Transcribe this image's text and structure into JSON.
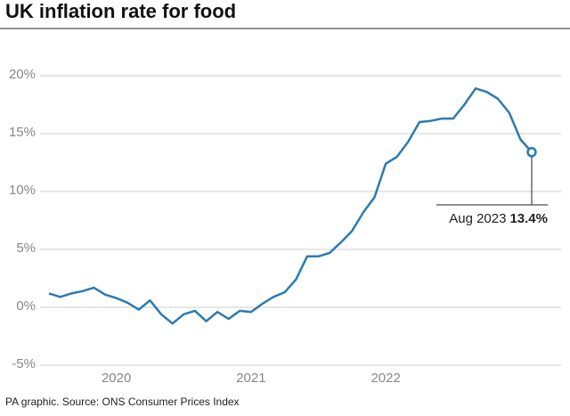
{
  "chart_data": {
    "type": "line",
    "title": "UK inflation rate for food",
    "source": "PA graphic. Source: ONS Consumer Prices Index",
    "categories": [
      null,
      null,
      null,
      null,
      null,
      null,
      "2020",
      null,
      null,
      null,
      null,
      null,
      null,
      null,
      null,
      null,
      null,
      null,
      "2021",
      null,
      null,
      null,
      null,
      null,
      null,
      null,
      null,
      null,
      null,
      null,
      "2022",
      null,
      null,
      null,
      null,
      null,
      null,
      null,
      null,
      null,
      null,
      null,
      null,
      null
    ],
    "series": [
      {
        "color": "#2b7bb0",
        "values": [
          1.2,
          0.9,
          1.2,
          1.4,
          1.7,
          1.1,
          0.8,
          0.4,
          -0.2,
          0.6,
          -0.6,
          -1.4,
          -0.6,
          -0.3,
          -1.2,
          -0.4,
          -1.0,
          -0.3,
          -0.4,
          0.3,
          0.9,
          1.3,
          2.4,
          4.4,
          4.4,
          4.7,
          5.6,
          6.6,
          8.2,
          9.5,
          12.4,
          13.0,
          14.3,
          16.0,
          16.1,
          16.3,
          16.3,
          17.5,
          18.9,
          18.6,
          18.0,
          16.8,
          14.5,
          13.4
        ],
        "value_labels": [
          null,
          null,
          null,
          null,
          null,
          null,
          null,
          null,
          null,
          null,
          null,
          null,
          null,
          null,
          null,
          null,
          null,
          null,
          null,
          null,
          null,
          null,
          null,
          null,
          null,
          null,
          null,
          null,
          null,
          null,
          null,
          null,
          null,
          null,
          null,
          null,
          null,
          null,
          null,
          null,
          null,
          null,
          null,
          "13.4%"
        ]
      }
    ],
    "annotation": "Aug 2023",
    "ylim": [
      -6,
      21
    ],
    "yticks": [
      {
        "value": -5,
        "label": "-5%"
      },
      {
        "value": 0,
        "label": "0%"
      },
      {
        "value": 5,
        "label": "5%"
      },
      {
        "value": 10,
        "label": "10%"
      },
      {
        "value": 15,
        "label": "15%"
      },
      {
        "value": 20,
        "label": "20%"
      }
    ],
    "grid": true
  }
}
